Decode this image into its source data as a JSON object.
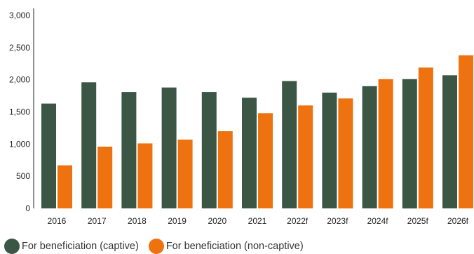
{
  "chart_data": {
    "type": "bar",
    "categories": [
      "2016",
      "2017",
      "2018",
      "2019",
      "2020",
      "2021",
      "2022f",
      "2023f",
      "2024f",
      "2025f",
      "2026f"
    ],
    "series": [
      {
        "name": "For beneficiation (captive)",
        "color": "#3b5644",
        "values": [
          1630,
          1960,
          1810,
          1880,
          1810,
          1720,
          1980,
          1800,
          1900,
          2010,
          2070
        ]
      },
      {
        "name": "For beneficiation (non-captive)",
        "color": "#ee720f",
        "values": [
          670,
          960,
          1010,
          1070,
          1200,
          1480,
          1600,
          1710,
          2010,
          2190,
          2380
        ]
      }
    ],
    "yticks": [
      "0",
      "500",
      "1,000",
      "1,500",
      "2,000",
      "2,500",
      "3,000"
    ],
    "ylim": [
      0,
      3000
    ],
    "title": "",
    "xlabel": "",
    "ylabel": "",
    "grid": false,
    "legend_position": "bottom-left"
  }
}
